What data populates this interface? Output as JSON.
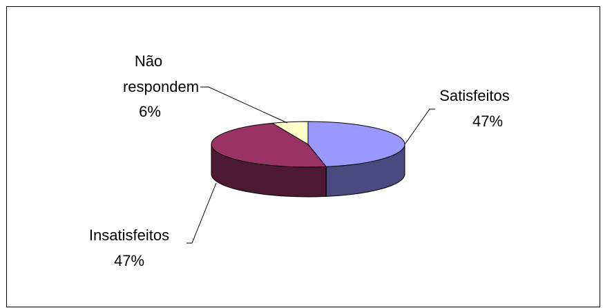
{
  "chart_data": {
    "type": "pie",
    "style": "3d",
    "slices": [
      {
        "category": "Satisfeitos",
        "value": 47,
        "value_label": "47%",
        "color": "#9999FF",
        "side_color": "#4A4A80"
      },
      {
        "category": "Insatisfeitos",
        "value": 47,
        "value_label": "47%",
        "color": "#993366",
        "side_color": "#4D1933"
      },
      {
        "category_lines": [
          "Não",
          "respondem"
        ],
        "value": 6,
        "value_label": "6%",
        "color": "#FFFFCC",
        "side_color": "#808066"
      }
    ]
  }
}
